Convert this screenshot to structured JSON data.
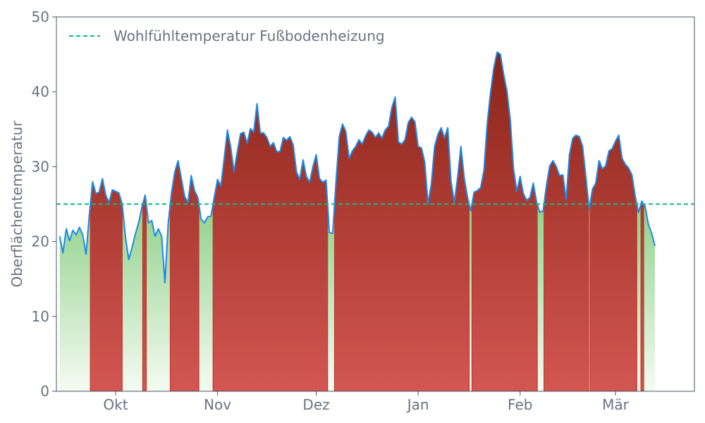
{
  "chart_data": {
    "type": "area",
    "ylabel": "Oberflächentemperatur",
    "xlabel": "",
    "ylim": [
      0,
      50
    ],
    "yticks": [
      0,
      10,
      20,
      30,
      40,
      50
    ],
    "xlim": [
      "2023-09-13",
      "2024-03-25"
    ],
    "xticks": [
      {
        "label": "Okt",
        "date": "2023-10-01"
      },
      {
        "label": "Nov",
        "date": "2023-11-01"
      },
      {
        "label": "Dez",
        "date": "2023-12-01"
      },
      {
        "label": "Jan",
        "date": "2024-01-01"
      },
      {
        "label": "Feb",
        "date": "2024-02-01"
      },
      {
        "label": "Mär",
        "date": "2024-03-01"
      }
    ],
    "grid": false,
    "legend_position": "top-left",
    "reference_line": {
      "name": "Wohlfühltemperatur Fußbodenheizung",
      "value": 25,
      "color": "#10b981",
      "style": "dashed"
    },
    "colors": {
      "line": "#1e88e5",
      "above_top": "#8b2418",
      "above_bottom": "#d35652",
      "below_top": "#8fd18a",
      "below_bottom": "#f5fbf2",
      "axis": "#4b5563",
      "text": "#6b7280"
    },
    "series": [
      {
        "start_date": "2023-09-14",
        "step_days": 1,
        "values": [
          20.7,
          18.5,
          21.7,
          20.1,
          21.5,
          20.9,
          21.9,
          20.9,
          18.3,
          23.5,
          28.0,
          26.4,
          26.6,
          28.4,
          26.2,
          25.2,
          26.9,
          26.7,
          26.5,
          25.0,
          20.6,
          17.6,
          19.2,
          21.0,
          22.5,
          24.6,
          26.2,
          22.5,
          22.8,
          20.7,
          21.7,
          20.7,
          14.5,
          22.5,
          26.5,
          29.3,
          30.8,
          28.4,
          26.0,
          25.2,
          28.8,
          26.8,
          25.9,
          23.0,
          22.5,
          23.3,
          23.4,
          25.9,
          28.3,
          27.4,
          31.0,
          34.9,
          32.6,
          29.3,
          32.0,
          34.4,
          34.6,
          33.1,
          35.1,
          34.6,
          38.4,
          34.5,
          34.5,
          33.9,
          32.7,
          33.2,
          32.0,
          32.0,
          33.9,
          33.5,
          34.0,
          32.9,
          29.3,
          28.3,
          30.9,
          28.7,
          27.9,
          30.0,
          31.6,
          28.4,
          27.9,
          28.2,
          21.2,
          21.1,
          27.9,
          34.0,
          35.7,
          34.7,
          31.1,
          32.1,
          32.7,
          33.6,
          33.0,
          34.1,
          34.9,
          34.6,
          33.9,
          34.5,
          33.8,
          34.9,
          35.4,
          37.9,
          39.3,
          33.3,
          33.0,
          33.6,
          35.9,
          36.6,
          36.0,
          32.7,
          32.5,
          30.6,
          25.0,
          27.7,
          32.7,
          34.3,
          35.2,
          33.8,
          35.2,
          28.0,
          25.2,
          28.6,
          32.7,
          28.5,
          25.9,
          24.1,
          26.6,
          26.8,
          27.2,
          29.5,
          35.8,
          39.9,
          43.2,
          45.3,
          45.0,
          42.3,
          40.1,
          36.3,
          29.7,
          26.7,
          28.7,
          26.4,
          25.5,
          25.9,
          27.8,
          25.3,
          23.9,
          24.1,
          27.5,
          30.1,
          30.8,
          30.0,
          28.8,
          28.9,
          25.6,
          31.6,
          33.8,
          34.2,
          34.0,
          32.7,
          28.6,
          24.3,
          27.0,
          27.8,
          30.8,
          29.7,
          30.1,
          32.1,
          32.4,
          33.4,
          34.2,
          31.1,
          30.3,
          29.8,
          28.9,
          26.0,
          23.9,
          25.4,
          24.7,
          22.3,
          21.1,
          19.4
        ]
      }
    ]
  }
}
